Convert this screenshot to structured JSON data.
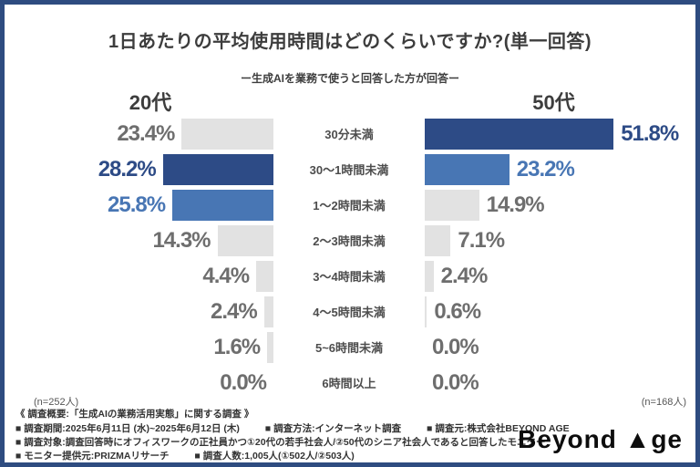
{
  "title": "1日あたりの平均使用時間はどのくらいですか?(単一回答)",
  "subtitle": "ー生成AIを業務で使うと回答した方が回答ー",
  "groups": {
    "left": {
      "label": "20代",
      "n": "(n=252人)"
    },
    "right": {
      "label": "50代",
      "n": "(n=168人)"
    }
  },
  "colors": {
    "navy": "#2D4B86",
    "blue": "#4876B4",
    "gray_bar": "#E2E2E2",
    "label_gray": "#6E6E6E",
    "frame_border": "#2E4C80"
  },
  "chart_data": {
    "type": "bar",
    "orientation": "horizontal-mirrored",
    "title": "1日あたりの平均使用時間はどのくらいですか?(単一回答)",
    "subtitle": "ー生成AIを業務で使うと回答した方が回答ー",
    "categories": [
      "30分未満",
      "30〜1時間未満",
      "1〜2時間未満",
      "2〜3時間未満",
      "3〜4時間未満",
      "4〜5時間未満",
      "5~6時間未満",
      "6時間以上"
    ],
    "unit": "%",
    "xlim": [
      0,
      55
    ],
    "series": [
      {
        "name": "20代",
        "n": 252,
        "values": [
          23.4,
          28.2,
          25.8,
          14.3,
          4.4,
          2.4,
          1.6,
          0.0
        ],
        "bar_styles": [
          "gray",
          "navy",
          "blue",
          "gray",
          "gray",
          "gray",
          "gray",
          "gray"
        ]
      },
      {
        "name": "50代",
        "n": 168,
        "values": [
          51.8,
          23.2,
          14.9,
          7.1,
          2.4,
          0.6,
          0.0,
          0.0
        ],
        "bar_styles": [
          "navy",
          "blue",
          "gray",
          "gray",
          "gray",
          "gray",
          "gray",
          "gray"
        ]
      }
    ]
  },
  "footer": {
    "overview": "《 調査概要:「生成AIの業務活用実態」に関する調査 》",
    "rows": [
      [
        "■ 調査期間:2025年6月11日 (水)~2025年6月12日 (木)",
        "■ 調査方法:インターネット調査",
        "■ 調査元:株式会社BEYOND AGE"
      ],
      [
        "■ 調査対象:調査回答時にオフィスワークの正社員かつ①20代の若手社会人/②50代のシニア社会人であると回答したモニター"
      ],
      [
        "■ モニター提供元:PRIZMAリサーチ",
        "■ 調査人数:1,005人(①502人/②503人)"
      ]
    ]
  },
  "logo_text": "Beyond ▲ge"
}
